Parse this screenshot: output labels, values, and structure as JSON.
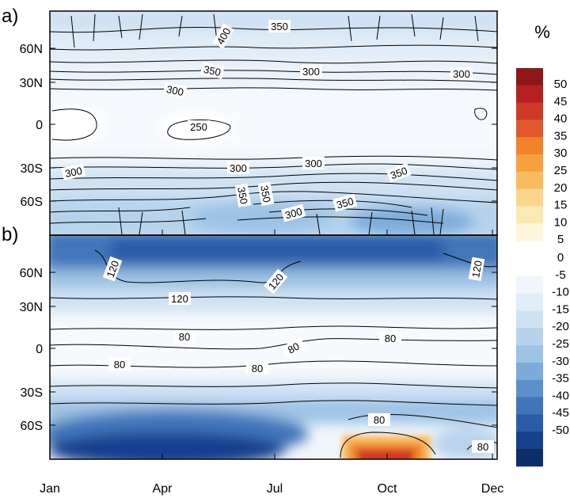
{
  "figure": {
    "unit_label": "%",
    "x_ticks": [
      "Jan",
      "Apr",
      "Jul",
      "Oct",
      "Dec"
    ],
    "colorbar": {
      "levels_positive": [
        5,
        10,
        15,
        20,
        25,
        30,
        35,
        40,
        45,
        50
      ],
      "levels_negative": [
        0,
        -5,
        -10,
        -15,
        -20,
        -25,
        -30,
        -35,
        -40,
        -45,
        -50
      ],
      "colors_positive": [
        "#fdf5dc",
        "#fce9b2",
        "#fbd58a",
        "#f9bb5f",
        "#f7a13c",
        "#f1832b",
        "#e2582a",
        "#cf3a26",
        "#b52120",
        "#8e1717"
      ],
      "colors_negative": [
        "#f1f6fc",
        "#e0ecf8",
        "#cfe2f3",
        "#b7d3ec",
        "#9cc2e4",
        "#7dabd9",
        "#5b90cb",
        "#3f76ba",
        "#2a5ca7",
        "#17418d",
        "#0e2d6b"
      ]
    }
  },
  "chart_data": [
    {
      "type": "heatmap",
      "panel_label": "a)",
      "x": [
        "Jan",
        "Apr",
        "Jul",
        "Oct",
        "Dec"
      ],
      "y": [
        "60S",
        "30S",
        "0",
        "30N",
        "60N"
      ],
      "contour_labels": [
        "400",
        "350",
        "350",
        "300",
        "300",
        "300",
        "250",
        "300",
        "300",
        "300",
        "350",
        "350",
        "350",
        "300",
        "350"
      ],
      "fill_range": [
        -25,
        0
      ]
    },
    {
      "type": "heatmap",
      "panel_label": "b)",
      "x": [
        "Jan",
        "Apr",
        "Jul",
        "Oct",
        "Dec"
      ],
      "y": [
        "60S",
        "30S",
        "0",
        "30N",
        "60N"
      ],
      "contour_labels": [
        "120",
        "120",
        "120",
        "120",
        "80",
        "80",
        "80",
        "80",
        "80",
        "80",
        "80"
      ],
      "fill_range": [
        -50,
        50
      ]
    }
  ]
}
